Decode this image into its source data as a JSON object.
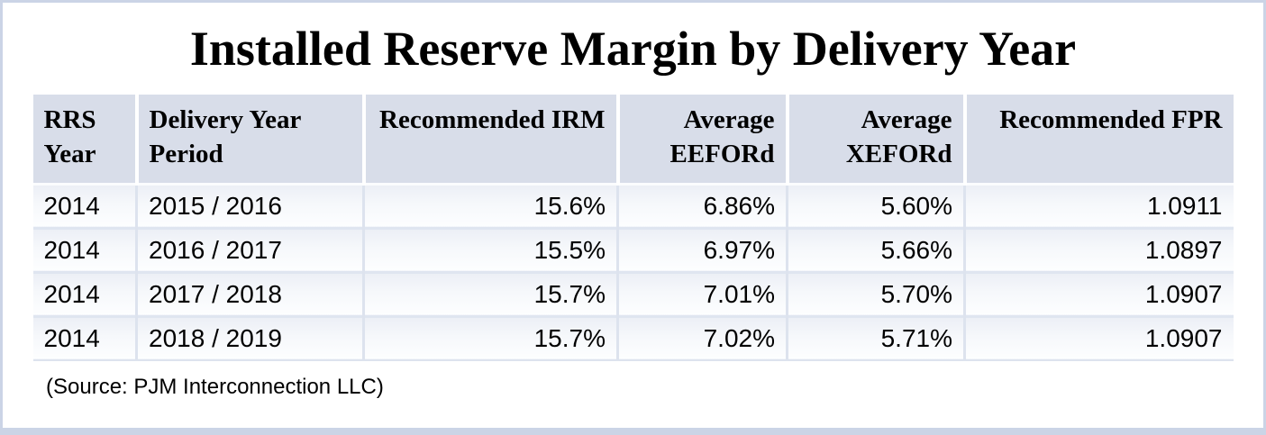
{
  "chart_data": {
    "type": "table",
    "title": "Installed Reserve Margin by Delivery Year",
    "columns": [
      "RRS Year",
      "Delivery Year Period",
      "Recommended IRM",
      "Average EEFORd",
      "Average XEFORd",
      "Recommended FPR"
    ],
    "col_align": [
      "left",
      "left",
      "right",
      "right",
      "right",
      "right"
    ],
    "rows": [
      [
        "2014",
        "2015 / 2016",
        "15.6%",
        "6.86%",
        "5.60%",
        "1.0911"
      ],
      [
        "2014",
        "2016 / 2017",
        "15.5%",
        "6.97%",
        "5.66%",
        "1.0897"
      ],
      [
        "2014",
        "2017 / 2018",
        "15.7%",
        "7.01%",
        "5.70%",
        "1.0907"
      ],
      [
        "2014",
        "2018 / 2019",
        "15.7%",
        "7.02%",
        "5.71%",
        "1.0907"
      ]
    ],
    "source": "(Source: PJM Interconnection LLC)"
  },
  "colors": {
    "outer_border": "#cbd4e6",
    "header_background": "#d8dde9",
    "row_separator": "#dde3ee",
    "text": "#000000",
    "page_background": "#ffffff"
  }
}
